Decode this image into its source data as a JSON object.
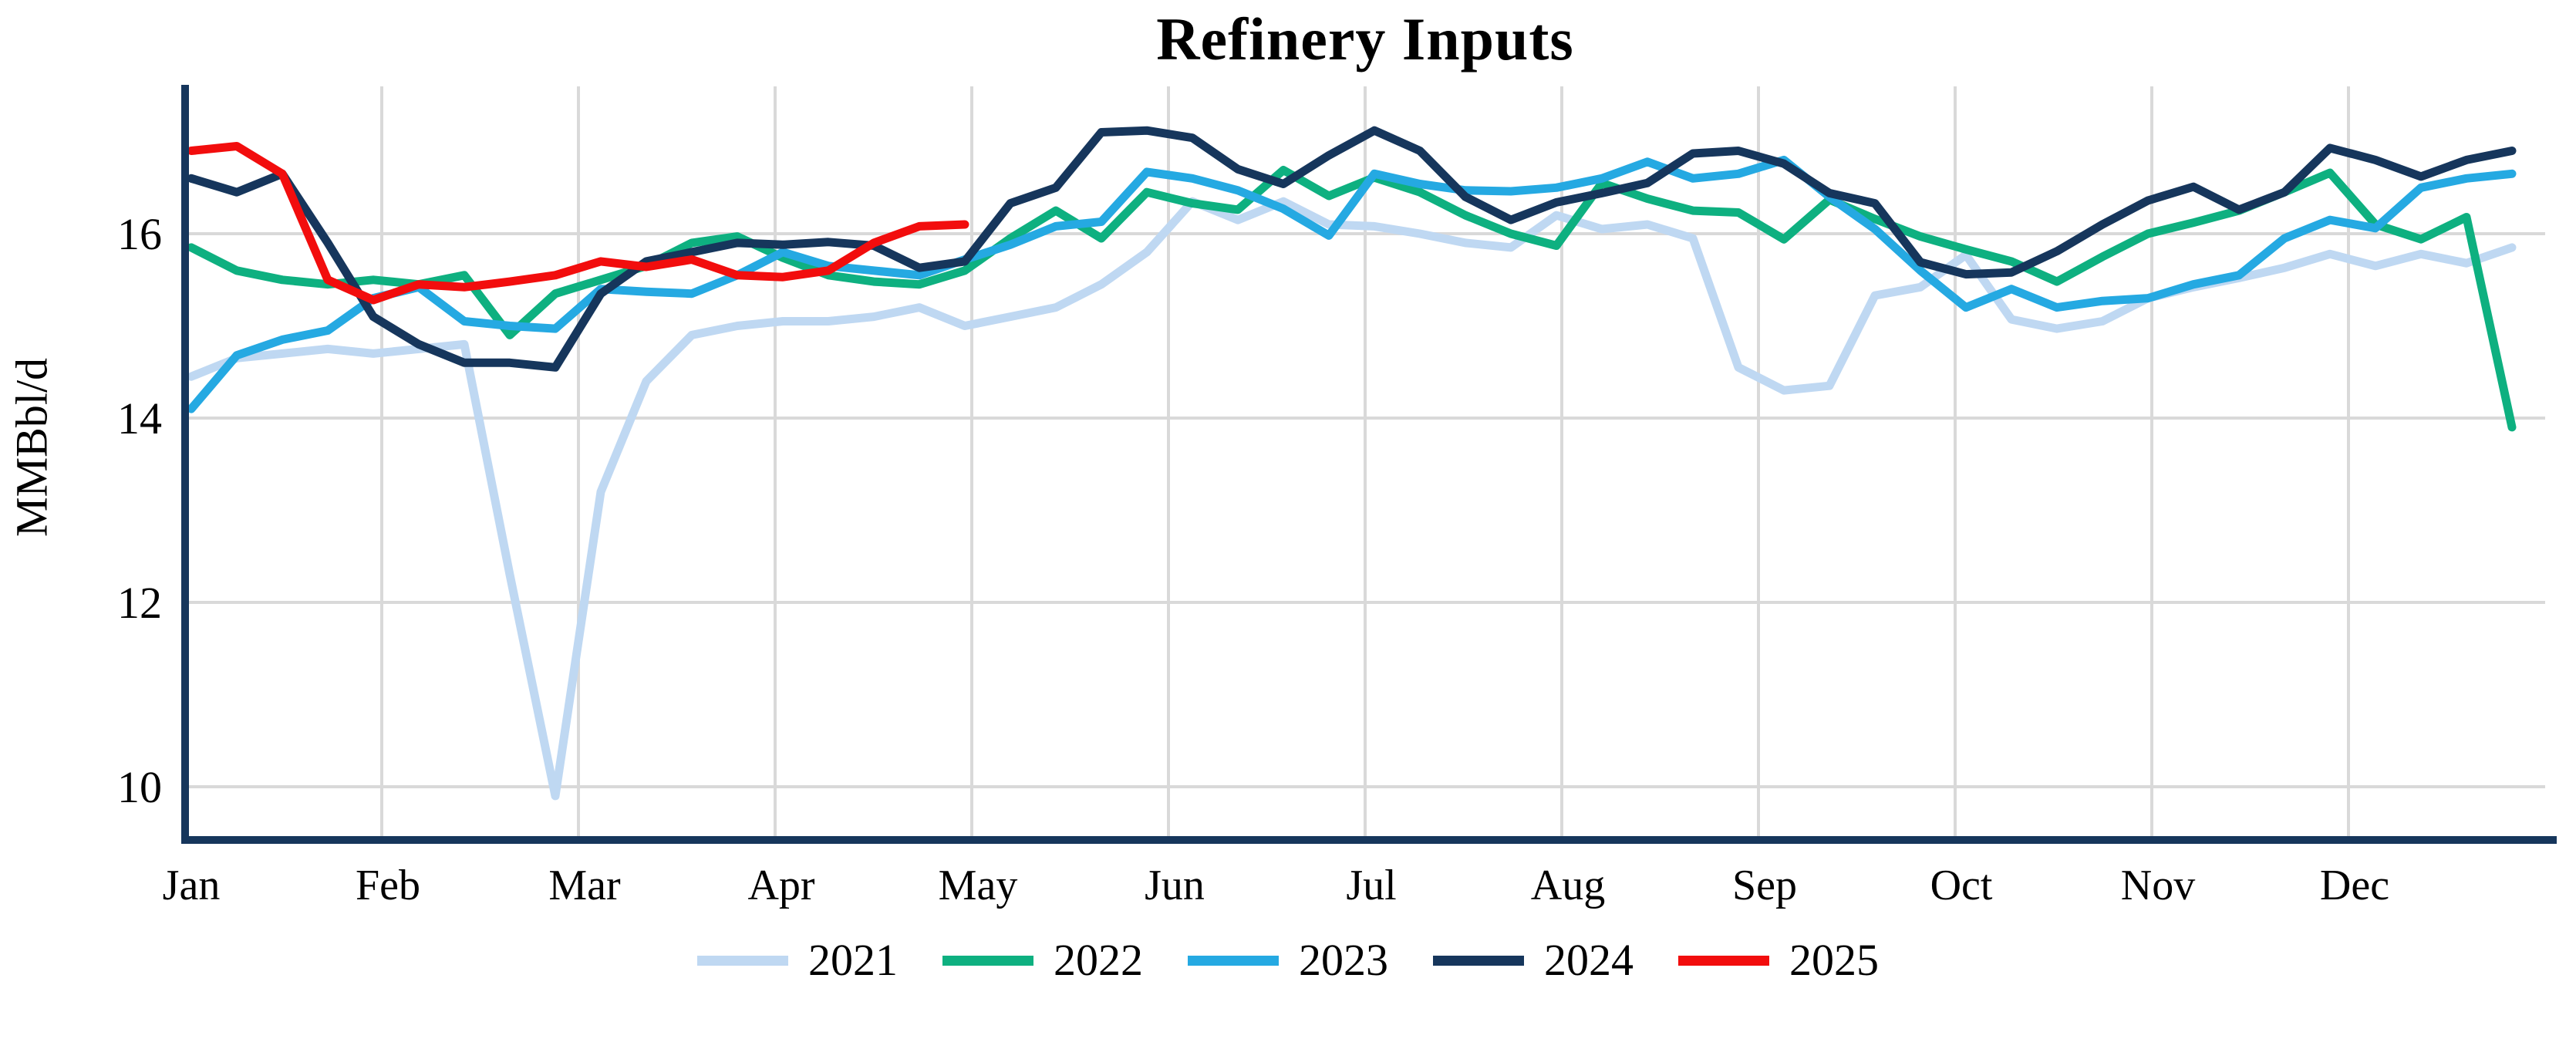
{
  "title": "Refinery Inputs",
  "chart_data": {
    "type": "line",
    "title": "Refinery Inputs",
    "xlabel": "",
    "ylabel": "MMBbl/d",
    "x_unit": "week-of-year",
    "x_tick_labels": [
      "Jan",
      "Feb",
      "Mar",
      "Apr",
      "May",
      "Jun",
      "Jul",
      "Aug",
      "Sep",
      "Oct",
      "Nov",
      "Dec"
    ],
    "y_ticks": [
      10,
      12,
      14,
      16
    ],
    "ylim": [
      9.4,
      17.6
    ],
    "grid": true,
    "grid_color": "#d9d9d9",
    "axis_color": "#16365c",
    "legend_position": "bottom",
    "series": [
      {
        "name": "2021",
        "color": "#bfd8f2",
        "values": [
          14.45,
          14.65,
          14.7,
          14.75,
          14.7,
          14.75,
          14.8,
          12.3,
          9.9,
          13.2,
          14.4,
          14.9,
          15.0,
          15.05,
          15.05,
          15.1,
          15.2,
          15.0,
          15.1,
          15.2,
          15.45,
          15.8,
          16.35,
          16.15,
          16.35,
          16.1,
          16.08,
          16.0,
          15.9,
          15.85,
          16.2,
          16.05,
          16.1,
          15.95,
          14.55,
          14.3,
          14.35,
          15.33,
          15.42,
          15.77,
          15.07,
          14.97,
          15.05,
          15.3,
          15.42,
          15.52,
          15.63,
          15.78,
          15.65,
          15.78,
          15.68,
          15.85
        ]
      },
      {
        "name": "2022",
        "color": "#0eb080",
        "values": [
          15.85,
          15.6,
          15.5,
          15.45,
          15.5,
          15.45,
          15.55,
          14.9,
          15.35,
          15.5,
          15.65,
          15.9,
          15.97,
          15.74,
          15.55,
          15.48,
          15.45,
          15.6,
          15.95,
          16.25,
          15.95,
          16.45,
          16.33,
          16.26,
          16.69,
          16.41,
          16.61,
          16.45,
          16.2,
          16.0,
          15.87,
          16.55,
          16.38,
          16.25,
          16.23,
          15.94,
          16.37,
          16.16,
          15.97,
          15.83,
          15.7,
          15.48,
          15.75,
          16.0,
          16.12,
          16.25,
          16.45,
          16.66,
          16.1,
          15.94,
          16.18,
          13.9
        ]
      },
      {
        "name": "2023",
        "color": "#25a9e2",
        "values": [
          14.1,
          14.68,
          14.85,
          14.95,
          15.3,
          15.42,
          15.05,
          15.0,
          14.97,
          15.4,
          15.37,
          15.35,
          15.55,
          15.8,
          15.65,
          15.6,
          15.55,
          15.72,
          15.88,
          16.08,
          16.13,
          16.67,
          16.6,
          16.47,
          16.27,
          15.98,
          16.65,
          16.54,
          16.47,
          16.46,
          16.5,
          16.6,
          16.78,
          16.6,
          16.65,
          16.8,
          16.4,
          16.05,
          15.6,
          15.2,
          15.4,
          15.2,
          15.27,
          15.3,
          15.45,
          15.55,
          15.95,
          16.15,
          16.06,
          16.5,
          16.6,
          16.65
        ]
      },
      {
        "name": "2024",
        "color": "#16365c",
        "values": [
          16.6,
          16.45,
          16.65,
          15.9,
          15.1,
          14.8,
          14.6,
          14.6,
          14.55,
          15.35,
          15.7,
          15.8,
          15.9,
          15.88,
          15.91,
          15.87,
          15.63,
          15.7,
          16.33,
          16.5,
          17.1,
          17.12,
          17.04,
          16.7,
          16.54,
          16.85,
          17.12,
          16.9,
          16.4,
          16.15,
          16.34,
          16.44,
          16.55,
          16.87,
          16.9,
          16.76,
          16.44,
          16.33,
          15.69,
          15.56,
          15.58,
          15.81,
          16.1,
          16.36,
          16.51,
          16.26,
          16.45,
          16.93,
          16.8,
          16.62,
          16.8,
          16.9
        ]
      },
      {
        "name": "2025",
        "color": "#f20d0d",
        "values": [
          16.9,
          16.95,
          16.65,
          15.5,
          15.28,
          15.45,
          15.42,
          15.48,
          15.55,
          15.7,
          15.64,
          15.72,
          15.55,
          15.53,
          15.6,
          15.9,
          16.08,
          16.1
        ]
      }
    ]
  }
}
